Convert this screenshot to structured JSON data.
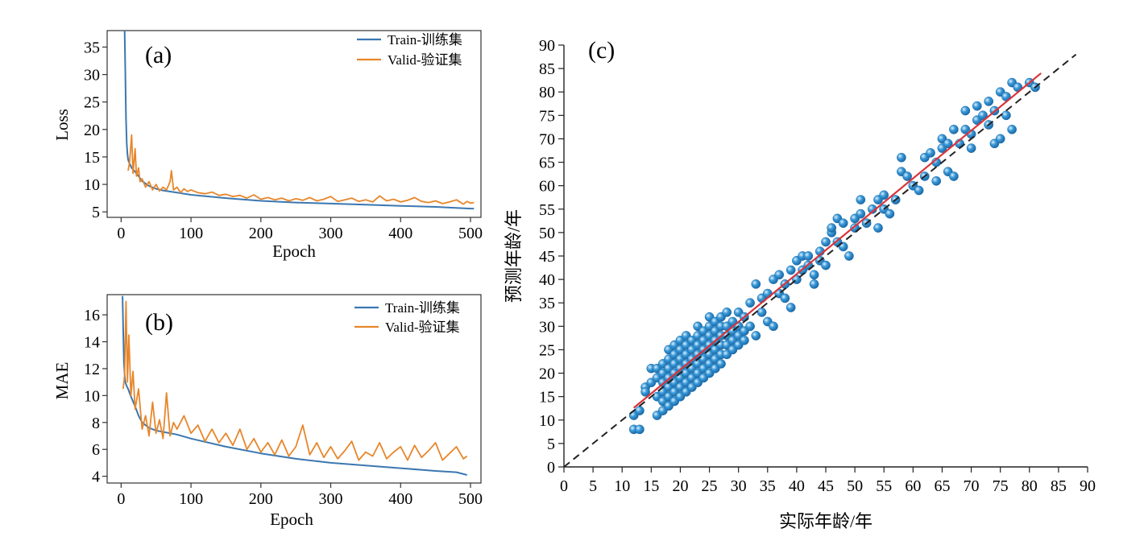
{
  "chart_data": [
    {
      "type": "line",
      "panel_label": "(a)",
      "xlabel": "Epoch",
      "ylabel": "Loss",
      "xlim": [
        -20,
        515
      ],
      "ylim": [
        4,
        38
      ],
      "xticks": [
        0,
        100,
        200,
        300,
        400,
        500
      ],
      "yticks": [
        5,
        10,
        15,
        20,
        25,
        30,
        35
      ],
      "legend_position": "top-right",
      "series": [
        {
          "name": "Train-训练集",
          "color": "#3b77b0",
          "x": [
            5,
            6,
            7,
            8,
            9,
            10,
            12,
            15,
            20,
            25,
            30,
            40,
            50,
            60,
            80,
            100,
            150,
            200,
            250,
            300,
            350,
            400,
            450,
            500,
            505
          ],
          "y": [
            38,
            31,
            22,
            17.5,
            15.5,
            14.5,
            13.8,
            13,
            12.3,
            11.5,
            10.6,
            9.7,
            9.2,
            8.9,
            8.5,
            8.1,
            7.5,
            7.0,
            6.7,
            6.5,
            6.3,
            6.1,
            5.9,
            5.6,
            5.6
          ]
        },
        {
          "name": "Valid-验证集",
          "color": "#e8862a",
          "x": [
            10,
            12,
            15,
            17,
            20,
            22,
            25,
            27,
            30,
            35,
            40,
            45,
            50,
            55,
            60,
            65,
            70,
            72,
            75,
            80,
            85,
            90,
            95,
            100,
            110,
            120,
            130,
            140,
            150,
            160,
            170,
            180,
            190,
            200,
            210,
            220,
            230,
            240,
            250,
            260,
            270,
            280,
            290,
            300,
            310,
            320,
            330,
            340,
            350,
            360,
            370,
            380,
            390,
            400,
            410,
            420,
            430,
            440,
            450,
            460,
            470,
            480,
            490,
            495,
            500,
            505
          ],
          "y": [
            12.5,
            14,
            19,
            12,
            16.5,
            11.5,
            13,
            10.5,
            11,
            9.5,
            10.5,
            9,
            10,
            8.8,
            9.5,
            9,
            10.5,
            12.5,
            9,
            9.5,
            8.5,
            9.2,
            8.7,
            9,
            8.5,
            8.3,
            8.6,
            8.0,
            8.2,
            7.8,
            8.0,
            7.5,
            8.1,
            7.3,
            7.6,
            7.2,
            7.5,
            7.0,
            7.4,
            7.1,
            7.6,
            7.0,
            7.3,
            7.8,
            6.9,
            7.2,
            7.5,
            6.9,
            7.2,
            6.8,
            7.9,
            7.0,
            7.3,
            6.8,
            7.1,
            7.6,
            6.9,
            6.7,
            7.0,
            6.5,
            6.8,
            7.2,
            6.4,
            6.9,
            6.6,
            6.7
          ]
        }
      ]
    },
    {
      "type": "line",
      "panel_label": "(b)",
      "xlabel": "Epoch",
      "ylabel": "MAE",
      "xlim": [
        -20,
        515
      ],
      "ylim": [
        3.5,
        17.5
      ],
      "xticks": [
        0,
        100,
        200,
        300,
        400,
        500
      ],
      "yticks": [
        4,
        6,
        8,
        10,
        12,
        14,
        16
      ],
      "legend_position": "top-right",
      "series": [
        {
          "name": "Train-训练集",
          "color": "#3b77b0",
          "x": [
            2,
            3,
            4,
            5,
            6,
            8,
            10,
            12,
            15,
            20,
            25,
            30,
            40,
            50,
            60,
            80,
            100,
            150,
            200,
            250,
            300,
            350,
            400,
            450,
            480,
            495
          ],
          "y": [
            17.4,
            15,
            12.5,
            11.6,
            11,
            10.7,
            10.5,
            10.2,
            9.8,
            9.2,
            8.5,
            8.0,
            7.6,
            7.4,
            7.3,
            7.1,
            6.8,
            6.2,
            5.7,
            5.3,
            5.0,
            4.8,
            4.6,
            4.4,
            4.3,
            4.1
          ]
        },
        {
          "name": "Valid-验证集",
          "color": "#e8862a",
          "x": [
            3,
            5,
            7,
            9,
            11,
            14,
            17,
            20,
            25,
            30,
            35,
            40,
            45,
            50,
            55,
            60,
            65,
            70,
            75,
            80,
            90,
            100,
            110,
            120,
            130,
            140,
            150,
            160,
            170,
            180,
            190,
            200,
            210,
            220,
            230,
            240,
            250,
            260,
            270,
            280,
            290,
            300,
            310,
            320,
            330,
            340,
            350,
            360,
            370,
            380,
            390,
            400,
            410,
            420,
            430,
            440,
            450,
            460,
            470,
            480,
            490,
            495
          ],
          "y": [
            10.5,
            11.5,
            17,
            11,
            14.5,
            10,
            11.8,
            9,
            10.5,
            7.5,
            8.5,
            7,
            9.5,
            7.2,
            8.2,
            6.8,
            10.2,
            7,
            8,
            7.5,
            8.5,
            7.2,
            7.8,
            6.6,
            7.5,
            6.5,
            7.2,
            6.3,
            7.5,
            6.0,
            6.8,
            5.8,
            6.5,
            5.6,
            6.7,
            5.5,
            6.2,
            7.8,
            5.6,
            6.5,
            5.4,
            6.2,
            5.3,
            5.9,
            6.6,
            5.2,
            5.8,
            5.5,
            6.5,
            5.3,
            5.8,
            6.2,
            5.2,
            6.3,
            5.4,
            5.9,
            6.5,
            5.2,
            5.7,
            6.2,
            5.3,
            5.5
          ]
        }
      ]
    },
    {
      "type": "scatter",
      "panel_label": "(c)",
      "xlabel": "实际年龄/年",
      "ylabel": "预测年龄/年",
      "xlim": [
        0,
        90
      ],
      "ylim": [
        0,
        90
      ],
      "xticks": [
        0,
        5,
        10,
        15,
        20,
        25,
        30,
        35,
        40,
        45,
        50,
        55,
        60,
        65,
        70,
        75,
        80,
        85,
        90
      ],
      "yticks": [
        0,
        5,
        10,
        15,
        20,
        25,
        30,
        35,
        40,
        45,
        50,
        55,
        60,
        65,
        70,
        75,
        80,
        85,
        90
      ],
      "point_color": "#3a9ad9",
      "identity_line": {
        "x": [
          0,
          88
        ],
        "y": [
          0,
          88
        ],
        "color": "#222222",
        "style": "dashed"
      },
      "fit_line": {
        "x": [
          12,
          82
        ],
        "y": [
          12.6,
          84
        ],
        "color": "#d9343a"
      },
      "points": [
        [
          12,
          8
        ],
        [
          13,
          8
        ],
        [
          12,
          11
        ],
        [
          13,
          12
        ],
        [
          14,
          17
        ],
        [
          14,
          16
        ],
        [
          15,
          18
        ],
        [
          15,
          21
        ],
        [
          16,
          11
        ],
        [
          16,
          15
        ],
        [
          16,
          19
        ],
        [
          16,
          21
        ],
        [
          17,
          12
        ],
        [
          17,
          14
        ],
        [
          17,
          16
        ],
        [
          17,
          18
        ],
        [
          17,
          20
        ],
        [
          17,
          22
        ],
        [
          18,
          13
        ],
        [
          18,
          15
        ],
        [
          18,
          17
        ],
        [
          18,
          19
        ],
        [
          18,
          21
        ],
        [
          18,
          23
        ],
        [
          18,
          25
        ],
        [
          19,
          14
        ],
        [
          19,
          16
        ],
        [
          19,
          18
        ],
        [
          19,
          20
        ],
        [
          19,
          22
        ],
        [
          19,
          24
        ],
        [
          19,
          26
        ],
        [
          20,
          15
        ],
        [
          20,
          17
        ],
        [
          20,
          19
        ],
        [
          20,
          21
        ],
        [
          20,
          23
        ],
        [
          20,
          25
        ],
        [
          20,
          27
        ],
        [
          21,
          16
        ],
        [
          21,
          18
        ],
        [
          21,
          20
        ],
        [
          21,
          22
        ],
        [
          21,
          24
        ],
        [
          21,
          26
        ],
        [
          21,
          28
        ],
        [
          22,
          17
        ],
        [
          22,
          19
        ],
        [
          22,
          21
        ],
        [
          22,
          23
        ],
        [
          22,
          25
        ],
        [
          22,
          27
        ],
        [
          23,
          18
        ],
        [
          23,
          20
        ],
        [
          23,
          22
        ],
        [
          23,
          24
        ],
        [
          23,
          26
        ],
        [
          23,
          28
        ],
        [
          23,
          30
        ],
        [
          24,
          19
        ],
        [
          24,
          21
        ],
        [
          24,
          23
        ],
        [
          24,
          25
        ],
        [
          24,
          27
        ],
        [
          24,
          29
        ],
        [
          25,
          20
        ],
        [
          25,
          22
        ],
        [
          25,
          24
        ],
        [
          25,
          26
        ],
        [
          25,
          28
        ],
        [
          25,
          30
        ],
        [
          25,
          32
        ],
        [
          26,
          21
        ],
        [
          26,
          23
        ],
        [
          26,
          25
        ],
        [
          26,
          27
        ],
        [
          26,
          29
        ],
        [
          26,
          31
        ],
        [
          27,
          22
        ],
        [
          27,
          24
        ],
        [
          27,
          26
        ],
        [
          27,
          28
        ],
        [
          27,
          30
        ],
        [
          27,
          32
        ],
        [
          28,
          24
        ],
        [
          28,
          26
        ],
        [
          28,
          28
        ],
        [
          28,
          30
        ],
        [
          28,
          33
        ],
        [
          29,
          25
        ],
        [
          29,
          27
        ],
        [
          29,
          29
        ],
        [
          29,
          31
        ],
        [
          30,
          26
        ],
        [
          30,
          28
        ],
        [
          30,
          30
        ],
        [
          30,
          33
        ],
        [
          31,
          27
        ],
        [
          31,
          29
        ],
        [
          31,
          32
        ],
        [
          32,
          30
        ],
        [
          32,
          35
        ],
        [
          33,
          28
        ],
        [
          33,
          39
        ],
        [
          34,
          33
        ],
        [
          34,
          36
        ],
        [
          35,
          31
        ],
        [
          35,
          37
        ],
        [
          36,
          30
        ],
        [
          36,
          40
        ],
        [
          37,
          37
        ],
        [
          37,
          41
        ],
        [
          38,
          36
        ],
        [
          38,
          39
        ],
        [
          39,
          34
        ],
        [
          39,
          42
        ],
        [
          40,
          40
        ],
        [
          40,
          44
        ],
        [
          41,
          42
        ],
        [
          41,
          45
        ],
        [
          42,
          43
        ],
        [
          42,
          45
        ],
        [
          43,
          39
        ],
        [
          43,
          41
        ],
        [
          44,
          44
        ],
        [
          44,
          46
        ],
        [
          45,
          43
        ],
        [
          45,
          48
        ],
        [
          46,
          50
        ],
        [
          46,
          51
        ],
        [
          47,
          48
        ],
        [
          47,
          53
        ],
        [
          48,
          52
        ],
        [
          48,
          47
        ],
        [
          49,
          45
        ],
        [
          50,
          53
        ],
        [
          50,
          51
        ],
        [
          51,
          54
        ],
        [
          51,
          57
        ],
        [
          52,
          52
        ],
        [
          53,
          55
        ],
        [
          54,
          51
        ],
        [
          54,
          57
        ],
        [
          55,
          58
        ],
        [
          55,
          55
        ],
        [
          56,
          54
        ],
        [
          57,
          57
        ],
        [
          58,
          63
        ],
        [
          58,
          66
        ],
        [
          59,
          62
        ],
        [
          60,
          60
        ],
        [
          61,
          59
        ],
        [
          62,
          62
        ],
        [
          62,
          66
        ],
        [
          63,
          67
        ],
        [
          64,
          65
        ],
        [
          64,
          61
        ],
        [
          65,
          68
        ],
        [
          65,
          70
        ],
        [
          66,
          63
        ],
        [
          66,
          69
        ],
        [
          67,
          62
        ],
        [
          67,
          72
        ],
        [
          68,
          69
        ],
        [
          69,
          72
        ],
        [
          69,
          76
        ],
        [
          70,
          71
        ],
        [
          70,
          68
        ],
        [
          71,
          74
        ],
        [
          71,
          77
        ],
        [
          72,
          75
        ],
        [
          73,
          73
        ],
        [
          73,
          78
        ],
        [
          74,
          69
        ],
        [
          74,
          76
        ],
        [
          75,
          70
        ],
        [
          75,
          80
        ],
        [
          76,
          79
        ],
        [
          76,
          75
        ],
        [
          77,
          82
        ],
        [
          77,
          72
        ],
        [
          78,
          81
        ],
        [
          80,
          82
        ],
        [
          81,
          81
        ]
      ]
    }
  ]
}
